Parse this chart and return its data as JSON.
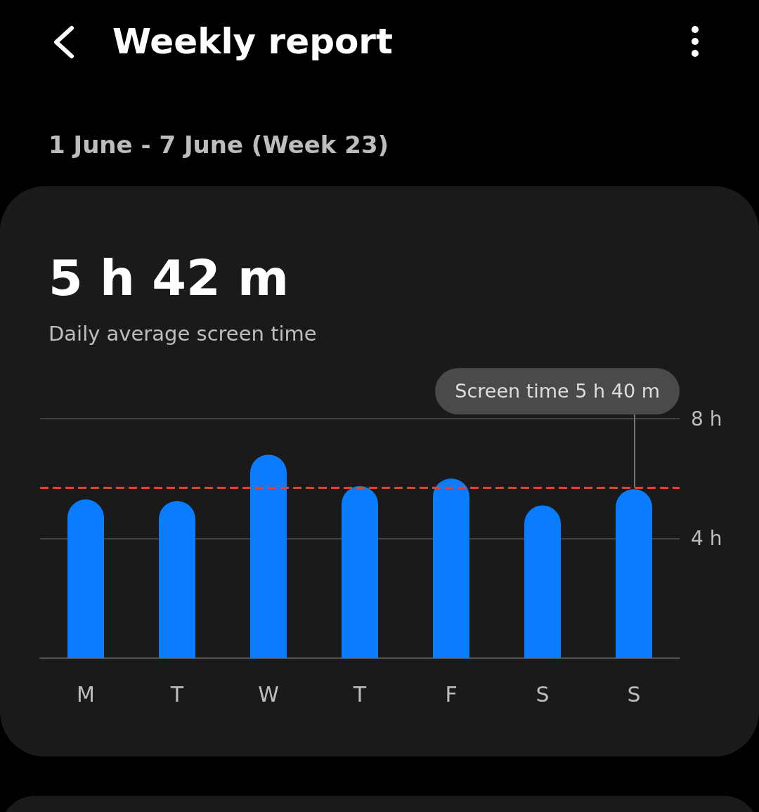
{
  "chart_data": {
    "type": "bar",
    "title": "Weekly report",
    "subtitle": "1 June - 7 June (Week 23)",
    "annotations": [
      "5 h 42 m",
      "Daily average screen time",
      "Screen time 5 h 40 m"
    ],
    "categories": [
      "M",
      "T",
      "W",
      "T",
      "F",
      "S",
      "S"
    ],
    "values": [
      5.3,
      5.25,
      6.8,
      5.75,
      6.0,
      5.1,
      5.65
    ],
    "color": "#0a7cff",
    "ylim": [
      0,
      8
    ],
    "yticks": [
      {
        "value": 0,
        "label": null
      },
      {
        "value": 4,
        "label": "4 h"
      },
      {
        "value": 8,
        "label": "8 h"
      }
    ],
    "grid": "y",
    "ref_lines": [
      {
        "axis": "y",
        "value": 5.7,
        "color": "#d9443f",
        "line_style": "dashed"
      }
    ]
  }
}
